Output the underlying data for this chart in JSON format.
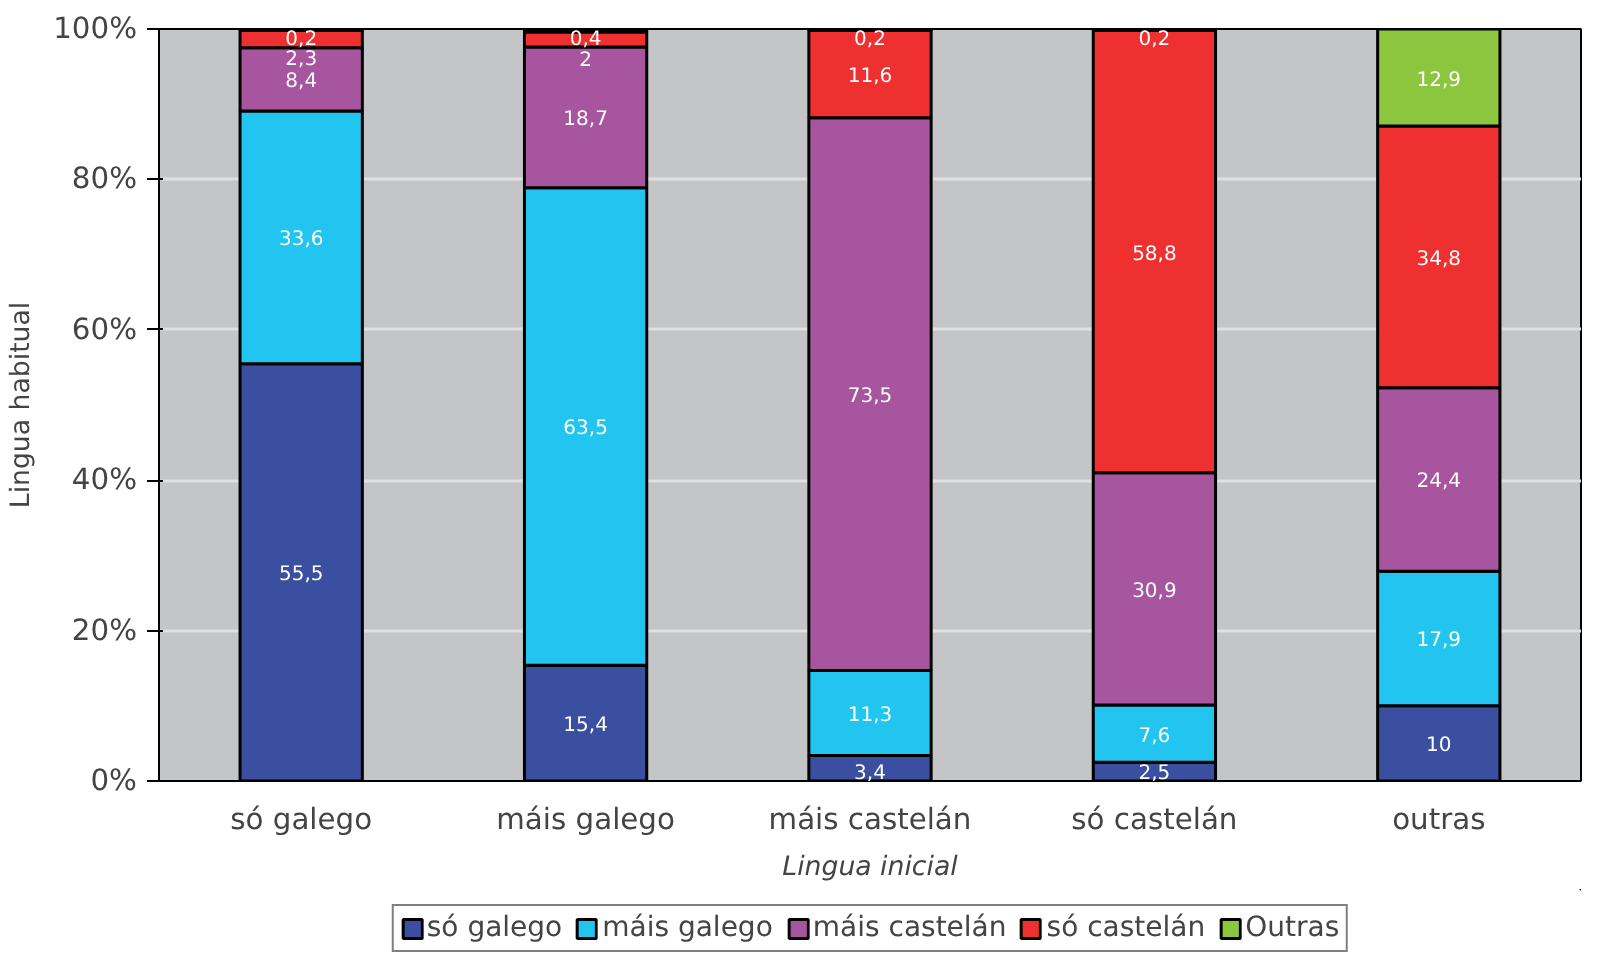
{
  "chart_data": {
    "type": "bar",
    "stacked": true,
    "xlabel": "Lingua inicial",
    "ylabel": "Lingua habitual",
    "categories": [
      "só galego",
      "máis galego",
      "máis castelán",
      "só castelán",
      "outras"
    ],
    "series": [
      {
        "name": "só galego",
        "color": "#3a4fa0",
        "values": [
          55.5,
          15.4,
          3.4,
          2.5,
          10
        ],
        "value_labels": [
          "55,5",
          "15,4",
          "3,4",
          "2,5",
          "10"
        ]
      },
      {
        "name": "máis galego",
        "color": "#22c4f0",
        "values": [
          33.6,
          63.5,
          11.3,
          7.6,
          17.9
        ],
        "value_labels": [
          "33,6",
          "63,5",
          "11,3",
          "7,6",
          "17,9"
        ]
      },
      {
        "name": "máis castelán",
        "color": "#a855a0",
        "values": [
          8.4,
          18.7,
          73.5,
          30.9,
          24.4
        ],
        "value_labels": [
          "8,4",
          "18,7",
          "73,5",
          "30,9",
          "24,4"
        ]
      },
      {
        "name": "só castelán",
        "color": "#ee3030",
        "values": [
          2.3,
          2,
          11.6,
          58.8,
          34.8
        ],
        "value_labels": [
          "2,3",
          "2",
          "11,6",
          "58,8",
          "34,8"
        ]
      },
      {
        "name": "Outras",
        "color": "#8cc63f",
        "values": [
          0.2,
          0.4,
          0.2,
          0.2,
          12.9
        ],
        "value_labels": [
          "0,2",
          "0,4",
          "0,2",
          "0,2",
          "12,9"
        ]
      }
    ],
    "ylim": [
      0,
      100
    ],
    "yticks": [
      {
        "value": 0,
        "label": "0%"
      },
      {
        "value": 20,
        "label": "20%"
      },
      {
        "value": 40,
        "label": "40%"
      },
      {
        "value": 60,
        "label": "60%"
      },
      {
        "value": 80,
        "label": "80%"
      },
      {
        "value": 100,
        "label": "100%"
      }
    ],
    "grid": "y",
    "legend": "bottom"
  }
}
